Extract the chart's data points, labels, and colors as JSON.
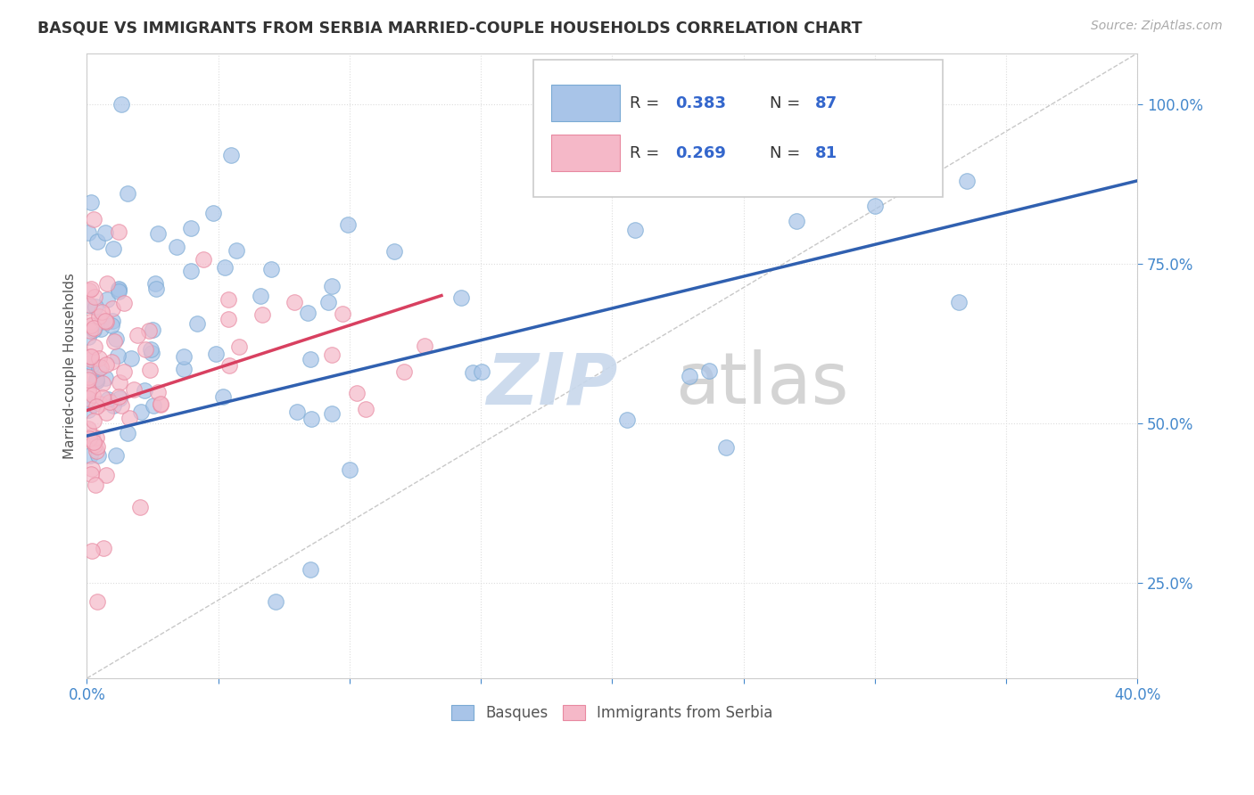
{
  "title": "BASQUE VS IMMIGRANTS FROM SERBIA MARRIED-COUPLE HOUSEHOLDS CORRELATION CHART",
  "source": "Source: ZipAtlas.com",
  "ylabel_label": "Married-couple Households",
  "legend_top_blue_r": "R = 0.383",
  "legend_top_blue_n": "N = 87",
  "legend_top_pink_r": "R = 0.269",
  "legend_top_pink_n": "N = 81",
  "legend_bottom": [
    "Basques",
    "Immigrants from Serbia"
  ],
  "blue_color": "#a8c4e8",
  "blue_edge_color": "#7aaad4",
  "pink_color": "#f5b8c8",
  "pink_edge_color": "#e888a0",
  "blue_line_color": "#3060b0",
  "pink_line_color": "#d84060",
  "ref_line_color": "#c8c8c8",
  "xlim": [
    0.0,
    40.0
  ],
  "ylim": [
    10.0,
    108.0
  ],
  "xticks": [
    0,
    5,
    10,
    15,
    20,
    25,
    30,
    35,
    40
  ],
  "yticks": [
    25,
    50,
    75,
    100
  ],
  "blue_trend_x0": 0.0,
  "blue_trend_y0": 48.0,
  "blue_trend_x1": 40.0,
  "blue_trend_y1": 88.0,
  "pink_trend_x0": 0.0,
  "pink_trend_y0": 52.0,
  "pink_trend_x1": 13.5,
  "pink_trend_y1": 70.0,
  "ref_line_x": [
    0.0,
    40.0
  ],
  "ref_line_y": [
    10.0,
    108.0
  ]
}
